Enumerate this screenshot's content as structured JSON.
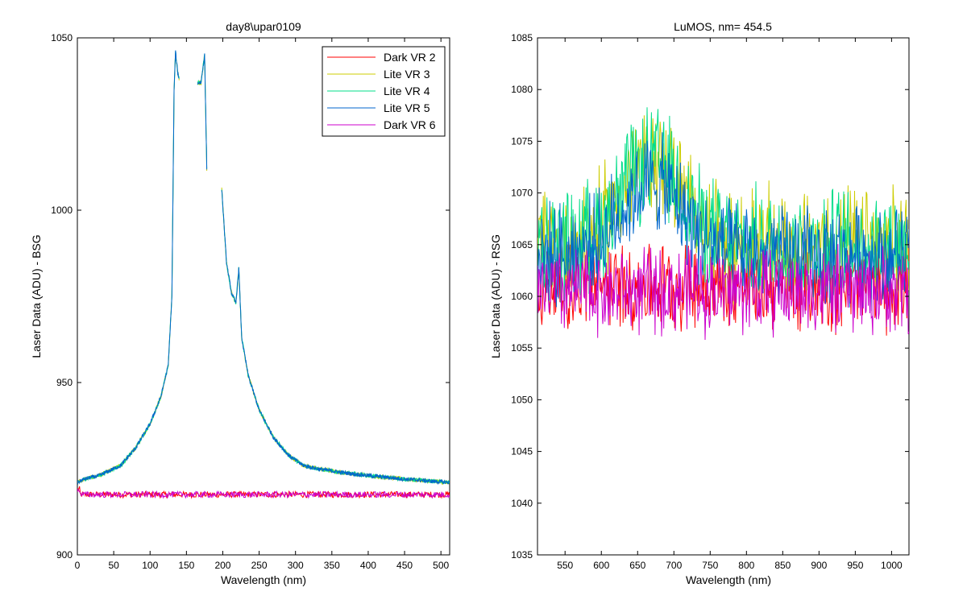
{
  "chart_data": [
    {
      "type": "line",
      "title": "day8\\upar0109",
      "xlabel": "Wavelength (nm)",
      "ylabel": "Laser Data (ADU) - BSG",
      "xlim": [
        0,
        512
      ],
      "ylim": [
        900,
        1050
      ],
      "xticks": [
        0,
        50,
        100,
        150,
        200,
        250,
        300,
        350,
        400,
        450,
        500
      ],
      "xtick_labels": [
        "0",
        "50",
        "100",
        "150",
        "200",
        "250",
        "300",
        "350",
        "400",
        "450",
        "500"
      ],
      "yticks": [
        900,
        950,
        1000,
        1050
      ],
      "ytick_labels": [
        "900",
        "950",
        "1000",
        "1050"
      ],
      "grid": false,
      "legend_position": "top-right",
      "series": [
        {
          "name": "Dark VR 2",
          "color": "#ff0000",
          "kind": "flat",
          "base": 917.5,
          "noise": 0.9
        },
        {
          "name": "Lite VR 3",
          "color": "#cccc00",
          "kind": "peak",
          "x": [
            0,
            10,
            30,
            60,
            80,
            100,
            115,
            125,
            130,
            133,
            135,
            138,
            140,
            145,
            150,
            155,
            160,
            165,
            170,
            175,
            178,
            185,
            192,
            198,
            205,
            212,
            218,
            222,
            226,
            235,
            250,
            270,
            290,
            310,
            330,
            360,
            400,
            450,
            480,
            512
          ],
          "y": [
            921,
            922,
            923,
            926,
            931,
            938,
            946,
            955,
            975,
            1035,
            1046,
            1040,
            1038,
            null,
            null,
            null,
            null,
            1037,
            1037,
            1045,
            1012,
            null,
            null,
            1008,
            985,
            976,
            973,
            983,
            963,
            952,
            942,
            934,
            929,
            926,
            925,
            924,
            923,
            922,
            921.5,
            921
          ],
          "gaps": [
            [
              142,
              163
            ],
            [
              180,
              196
            ]
          ]
        },
        {
          "name": "Lite VR 4",
          "color": "#00dd88",
          "kind": "peak_same"
        },
        {
          "name": "Lite VR 5",
          "color": "#0066cc",
          "kind": "peak_same"
        },
        {
          "name": "Dark VR 6",
          "color": "#cc00cc",
          "kind": "flat",
          "base": 917.5,
          "noise": 0.9
        }
      ]
    },
    {
      "type": "line",
      "title": "LuMOS, nm= 454.5",
      "xlabel": "Wavelength (nm)",
      "ylabel": "Laser Data (ADU) - RSG",
      "xlim": [
        512,
        1024
      ],
      "ylim": [
        1035,
        1085
      ],
      "xticks": [
        550,
        600,
        650,
        700,
        750,
        800,
        850,
        900,
        950,
        1000
      ],
      "xtick_labels": [
        "550",
        "600",
        "650",
        "700",
        "750",
        "800",
        "850",
        "900",
        "950",
        "1000"
      ],
      "yticks": [
        1035,
        1040,
        1045,
        1050,
        1055,
        1060,
        1065,
        1070,
        1075,
        1080,
        1085
      ],
      "ytick_labels": [
        "1035",
        "1040",
        "1045",
        "1050",
        "1055",
        "1060",
        "1065",
        "1070",
        "1075",
        "1080",
        "1085"
      ],
      "grid": false,
      "series": [
        {
          "name": "Dark VR 2",
          "color": "#ff0000",
          "base": 1061,
          "amp": 3.5,
          "hump": 0
        },
        {
          "name": "Lite VR 3",
          "color": "#cccc00",
          "base": 1065,
          "amp": 4.5,
          "hump": 8
        },
        {
          "name": "Lite VR 4",
          "color": "#00dd88",
          "base": 1065,
          "amp": 4.5,
          "hump": 8
        },
        {
          "name": "Lite VR 5",
          "color": "#0066cc",
          "base": 1064,
          "amp": 4.0,
          "hump": 7
        },
        {
          "name": "Dark VR 6",
          "color": "#cc00cc",
          "base": 1060.5,
          "amp": 3.5,
          "hump": 0
        }
      ]
    }
  ]
}
